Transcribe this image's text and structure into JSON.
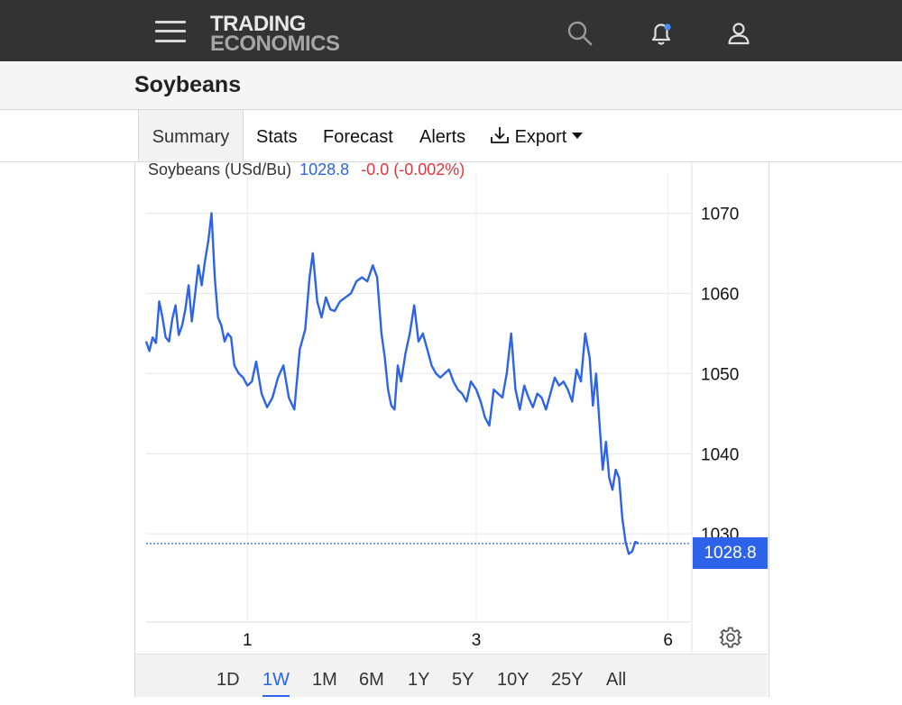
{
  "header": {
    "brand_line1": "TRADING",
    "brand_line2": "ECONOMICS",
    "icons": [
      "menu-icon",
      "search-icon",
      "bell-icon",
      "user-icon"
    ],
    "notification_dot_color": "#4a90f5"
  },
  "page": {
    "title": "Soybeans"
  },
  "tabs": [
    {
      "label": "Summary",
      "active": true
    },
    {
      "label": "Stats"
    },
    {
      "label": "Forecast"
    },
    {
      "label": "Alerts"
    },
    {
      "label": "Export",
      "icon": "download-icon"
    }
  ],
  "chart_header": {
    "name": "Soybeans (USd/Bu)",
    "price": "1028.8",
    "change": "-0.0 (-0.002%)"
  },
  "last_badge": "1028.8",
  "ranges": [
    {
      "label": "1D"
    },
    {
      "label": "1W",
      "active": true
    },
    {
      "label": "1M"
    },
    {
      "label": "6M"
    },
    {
      "label": "1Y"
    },
    {
      "label": "5Y"
    },
    {
      "label": "10Y"
    },
    {
      "label": "25Y"
    },
    {
      "label": "All"
    }
  ],
  "colors": {
    "line": "#2c63ea",
    "up": "#2c63ea",
    "down": "#e8333b",
    "topbar": "#333333"
  },
  "chart_data": {
    "type": "line",
    "title": "Soybeans (USd/Bu)",
    "xlabel": "",
    "ylabel": "",
    "x_ticks": [
      {
        "label": "1",
        "x": 0.186
      },
      {
        "label": "3",
        "x": 0.606
      },
      {
        "label": "6",
        "x": 0.958
      }
    ],
    "y_ticks": [
      1030,
      1040,
      1050,
      1060,
      1070
    ],
    "ylim": [
      1019,
      1075
    ],
    "xlim": [
      0,
      1
    ],
    "last_value": 1028.8,
    "grid": true,
    "series": [
      {
        "name": "Soybeans",
        "points": [
          [
            0.0,
            1054.0
          ],
          [
            0.006,
            1052.8
          ],
          [
            0.012,
            1054.5
          ],
          [
            0.018,
            1053.8
          ],
          [
            0.024,
            1059.0
          ],
          [
            0.03,
            1057.0
          ],
          [
            0.036,
            1054.5
          ],
          [
            0.042,
            1054.0
          ],
          [
            0.048,
            1056.8
          ],
          [
            0.054,
            1058.5
          ],
          [
            0.06,
            1054.8
          ],
          [
            0.066,
            1056.0
          ],
          [
            0.072,
            1058.0
          ],
          [
            0.078,
            1061.0
          ],
          [
            0.084,
            1056.5
          ],
          [
            0.09,
            1060.0
          ],
          [
            0.096,
            1063.5
          ],
          [
            0.102,
            1061.0
          ],
          [
            0.108,
            1064.0
          ],
          [
            0.114,
            1066.5
          ],
          [
            0.12,
            1070.0
          ],
          [
            0.126,
            1062.0
          ],
          [
            0.132,
            1057.0
          ],
          [
            0.138,
            1056.0
          ],
          [
            0.144,
            1054.0
          ],
          [
            0.15,
            1055.0
          ],
          [
            0.156,
            1054.5
          ],
          [
            0.162,
            1051.0
          ],
          [
            0.17,
            1050.0
          ],
          [
            0.178,
            1049.5
          ],
          [
            0.186,
            1048.5
          ],
          [
            0.194,
            1049.0
          ],
          [
            0.202,
            1051.5
          ],
          [
            0.212,
            1047.5
          ],
          [
            0.222,
            1045.8
          ],
          [
            0.232,
            1047.0
          ],
          [
            0.242,
            1049.5
          ],
          [
            0.252,
            1051.0
          ],
          [
            0.262,
            1047.0
          ],
          [
            0.272,
            1045.5
          ],
          [
            0.282,
            1053.0
          ],
          [
            0.292,
            1055.5
          ],
          [
            0.3,
            1062.0
          ],
          [
            0.306,
            1065.0
          ],
          [
            0.314,
            1059.0
          ],
          [
            0.322,
            1057.0
          ],
          [
            0.33,
            1059.5
          ],
          [
            0.338,
            1058.0
          ],
          [
            0.346,
            1057.8
          ],
          [
            0.356,
            1059.0
          ],
          [
            0.366,
            1059.5
          ],
          [
            0.376,
            1060.0
          ],
          [
            0.386,
            1061.5
          ],
          [
            0.396,
            1062.0
          ],
          [
            0.406,
            1061.5
          ],
          [
            0.416,
            1063.5
          ],
          [
            0.424,
            1062.0
          ],
          [
            0.432,
            1055.0
          ],
          [
            0.438,
            1052.0
          ],
          [
            0.444,
            1048.0
          ],
          [
            0.45,
            1046.0
          ],
          [
            0.456,
            1045.5
          ],
          [
            0.462,
            1051.0
          ],
          [
            0.468,
            1049.0
          ],
          [
            0.476,
            1052.5
          ],
          [
            0.484,
            1055.0
          ],
          [
            0.492,
            1058.5
          ],
          [
            0.5,
            1054.0
          ],
          [
            0.508,
            1055.0
          ],
          [
            0.516,
            1053.0
          ],
          [
            0.524,
            1051.0
          ],
          [
            0.532,
            1050.0
          ],
          [
            0.54,
            1049.5
          ],
          [
            0.548,
            1050.0
          ],
          [
            0.556,
            1050.5
          ],
          [
            0.564,
            1049.0
          ],
          [
            0.572,
            1048.0
          ],
          [
            0.58,
            1047.5
          ],
          [
            0.588,
            1046.5
          ],
          [
            0.596,
            1049.0
          ],
          [
            0.606,
            1048.0
          ],
          [
            0.614,
            1046.5
          ],
          [
            0.622,
            1044.5
          ],
          [
            0.63,
            1043.5
          ],
          [
            0.638,
            1048.0
          ],
          [
            0.646,
            1047.5
          ],
          [
            0.654,
            1047.0
          ],
          [
            0.662,
            1050.0
          ],
          [
            0.67,
            1055.0
          ],
          [
            0.678,
            1048.0
          ],
          [
            0.686,
            1045.5
          ],
          [
            0.694,
            1048.5
          ],
          [
            0.702,
            1047.0
          ],
          [
            0.71,
            1045.8
          ],
          [
            0.718,
            1047.5
          ],
          [
            0.726,
            1047.0
          ],
          [
            0.734,
            1045.5
          ],
          [
            0.742,
            1047.5
          ],
          [
            0.75,
            1049.5
          ],
          [
            0.758,
            1048.5
          ],
          [
            0.766,
            1049.0
          ],
          [
            0.774,
            1048.0
          ],
          [
            0.782,
            1046.5
          ],
          [
            0.79,
            1050.5
          ],
          [
            0.798,
            1049.0
          ],
          [
            0.806,
            1055.0
          ],
          [
            0.814,
            1052.0
          ],
          [
            0.82,
            1046.0
          ],
          [
            0.826,
            1050.0
          ],
          [
            0.832,
            1044.0
          ],
          [
            0.838,
            1038.0
          ],
          [
            0.844,
            1041.5
          ],
          [
            0.85,
            1037.0
          ],
          [
            0.856,
            1035.5
          ],
          [
            0.862,
            1038.0
          ],
          [
            0.868,
            1037.0
          ],
          [
            0.874,
            1032.0
          ],
          [
            0.88,
            1029.0
          ],
          [
            0.886,
            1027.5
          ],
          [
            0.892,
            1027.8
          ],
          [
            0.898,
            1029.0
          ],
          [
            0.904,
            1028.8
          ]
        ]
      }
    ]
  }
}
